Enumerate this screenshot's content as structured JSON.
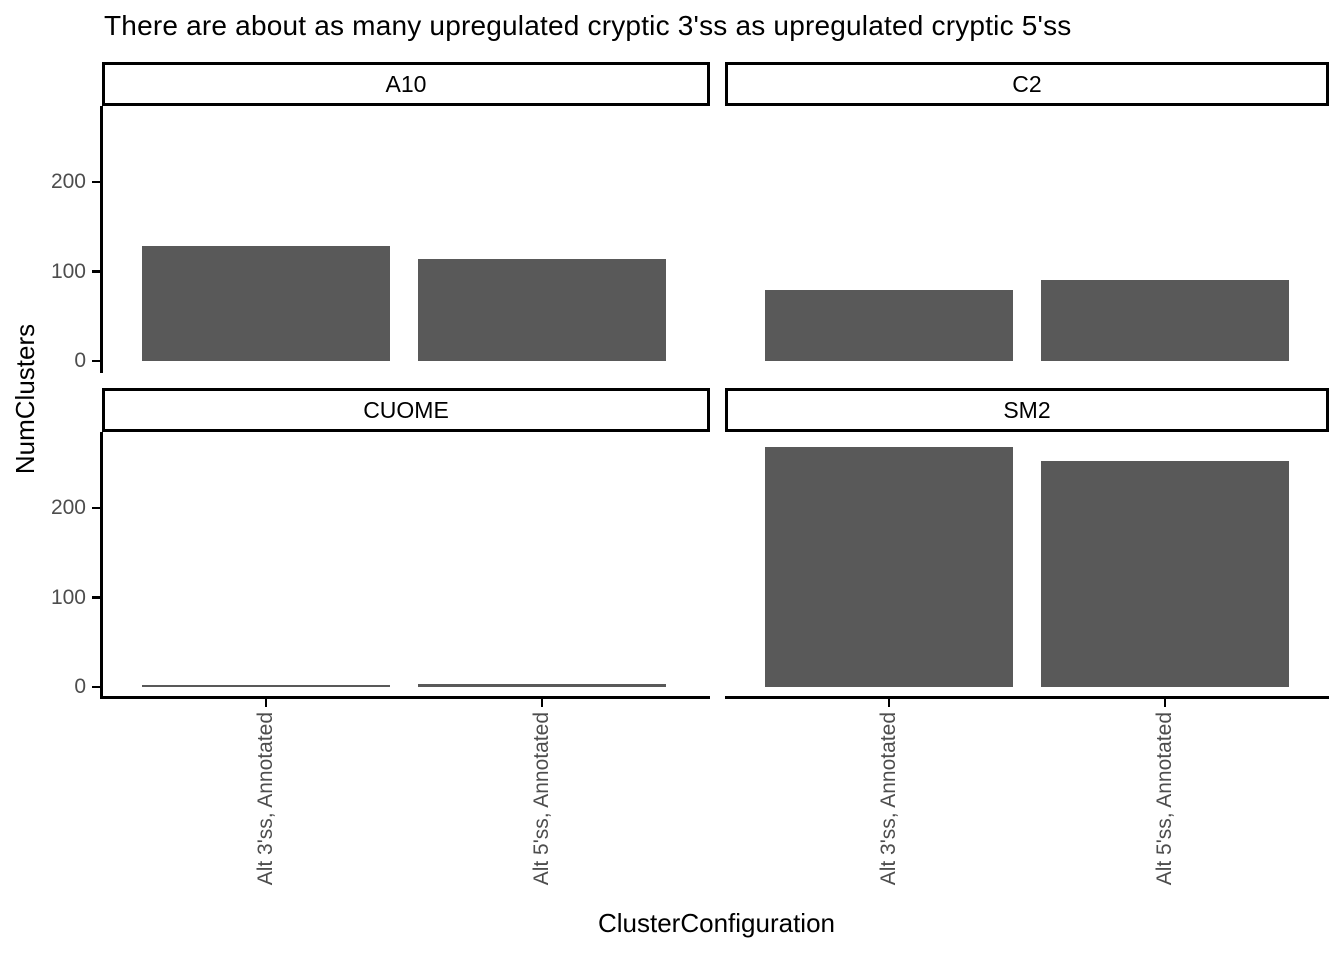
{
  "title": "There are about as many upregulated cryptic 3'ss as upregulated cryptic 5'ss",
  "x_axis_title": "ClusterConfiguration",
  "y_axis_title": "NumClusters",
  "chart_data": {
    "type": "bar",
    "layout": "2x2 facet grid, shared axes",
    "facets": [
      "A10",
      "C2",
      "CUOME",
      "SM2"
    ],
    "categories": [
      "Alt 3'ss, Annotated",
      "Alt 5'ss, Annotated"
    ],
    "series": [
      {
        "facet": "A10",
        "values": [
          129,
          114
        ]
      },
      {
        "facet": "C2",
        "values": [
          79,
          90
        ]
      },
      {
        "facet": "CUOME",
        "values": [
          2,
          3
        ]
      },
      {
        "facet": "SM2",
        "values": [
          268,
          253
        ]
      }
    ],
    "title": "There are about as many upregulated cryptic 3'ss as upregulated cryptic 5'ss",
    "xlabel": "ClusterConfiguration",
    "ylabel": "NumClusters",
    "ylim": [
      0,
      285
    ],
    "y_ticks": [
      0,
      100,
      200
    ],
    "grid": false,
    "legend": "none",
    "bar_color": "#595959",
    "axis_text_color": "#4d4d4d",
    "axis_line_color": "#000000"
  }
}
